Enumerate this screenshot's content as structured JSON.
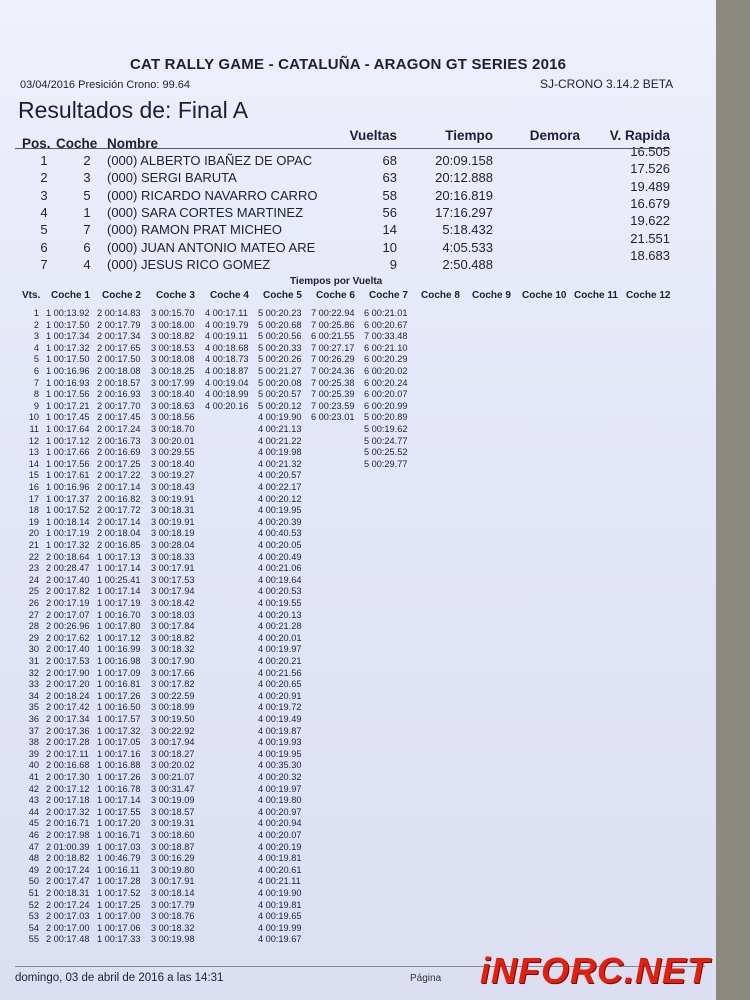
{
  "header": {
    "title": "CAT RALLY GAME - CATALUÑA  - ARAGON GT SERIES 2016",
    "date_line": "03/04/2016 Presición Crono: 99.64",
    "version": "SJ-CRONO 3.14.2 BETA",
    "heading": "Resultados de: Final A"
  },
  "results": {
    "columns": [
      "Pos.",
      "Coche",
      "Nombre",
      "Vueltas",
      "Tiempo",
      "Demora",
      "V. Rapida"
    ],
    "rows": [
      [
        "1",
        "2",
        "(000) ALBERTO IBAÑEZ DE OPAC",
        "68",
        "20:09.158",
        "",
        "16.505"
      ],
      [
        "2",
        "3",
        "(000) SERGI BARUTA",
        "63",
        "20:12.888",
        "",
        "17.526"
      ],
      [
        "3",
        "5",
        "(000) RICARDO NAVARRO CARRO",
        "58",
        "20:16.819",
        "",
        "19.489"
      ],
      [
        "4",
        "1",
        "(000) SARA CORTES MARTINEZ",
        "56",
        "17:16.297",
        "",
        "16.679"
      ],
      [
        "5",
        "7",
        "(000) RAMON PRAT MICHEO",
        "14",
        "5:18.432",
        "",
        "19.622"
      ],
      [
        "6",
        "6",
        "(000) JUAN ANTONIO MATEO ARE",
        "10",
        "4:05.533",
        "",
        "21.551"
      ],
      [
        "7",
        "4",
        "(000) JESUS RICO GOMEZ",
        "9",
        "2:50.488",
        "",
        "18.683"
      ]
    ]
  },
  "laps": {
    "title": "Tiempos por Vuelta",
    "columns": [
      "Vts.",
      "Coche 1",
      "Coche 2",
      "Coche 3",
      "Coche 4",
      "Coche 5",
      "Coche 6",
      "Coche 7",
      "Coche 8",
      "Coche 9",
      "Coche 10",
      "Coche 11",
      "Coche 12"
    ],
    "rows": [
      [
        "1",
        "1 00:13.92",
        "2 00:14.83",
        "3 00:15.70",
        "4 00:17.11",
        "5 00:20.23",
        "7 00:22.94",
        "6 00:21.01"
      ],
      [
        "2",
        "1 00:17.50",
        "2 00:17.79",
        "3 00:18.00",
        "4 00:19.79",
        "5 00:20.68",
        "7 00:25.86",
        "6 00:20.67"
      ],
      [
        "3",
        "1 00:17.34",
        "2 00:17.34",
        "3 00:18.82",
        "4 00:19.11",
        "5 00:20.56",
        "6 00:21.55",
        "7 00:33.48"
      ],
      [
        "4",
        "1 00:17.32",
        "2 00:17.65",
        "3 00:18.53",
        "4 00:18.68",
        "5 00:20.33",
        "7 00:27.17",
        "6 00:21.10"
      ],
      [
        "5",
        "1 00:17.50",
        "2 00:17.50",
        "3 00:18.08",
        "4 00:18.73",
        "5 00:20.26",
        "7 00:26.29",
        "6 00:20.29"
      ],
      [
        "6",
        "1 00:16.96",
        "2 00:18.08",
        "3 00:18.25",
        "4 00:18.87",
        "5 00:21.27",
        "7 00:24.36",
        "6 00:20.02"
      ],
      [
        "7",
        "1 00:16.93",
        "2 00:18.57",
        "3 00:17.99",
        "4 00:19.04",
        "5 00:20.08",
        "7 00:25.38",
        "6 00:20.24"
      ],
      [
        "8",
        "1 00:17.56",
        "2 00:16.93",
        "3 00:18.40",
        "4 00:18.99",
        "5 00:20.57",
        "7 00:25.39",
        "6 00:20.07"
      ],
      [
        "9",
        "1 00:17.21",
        "2 00:17.70",
        "3 00:18.63",
        "4 00:20.16",
        "5 00:20.12",
        "7 00:23.59",
        "6 00:20.99"
      ],
      [
        "10",
        "1 00:17.45",
        "2 00:17.45",
        "3 00:18.56",
        "",
        "4 00:19.90",
        "6 00:23.01",
        "5 00:20.89"
      ],
      [
        "11",
        "1 00:17.64",
        "2 00:17.24",
        "3 00:18.70",
        "",
        "4 00:21.13",
        "",
        "5 00:19.62"
      ],
      [
        "12",
        "1 00:17.12",
        "2 00:16.73",
        "3 00:20.01",
        "",
        "4 00:21.22",
        "",
        "5 00:24.77"
      ],
      [
        "13",
        "1 00:17.66",
        "2 00:16.69",
        "3 00:29.55",
        "",
        "4 00:19.98",
        "",
        "5 00:25.52"
      ],
      [
        "14",
        "1 00:17.56",
        "2 00:17.25",
        "3 00:18.40",
        "",
        "4 00:21.32",
        "",
        "5 00:29.77"
      ],
      [
        "15",
        "1 00:17.61",
        "2 00:17.22",
        "3 00:19.27",
        "",
        "4 00:20.57"
      ],
      [
        "16",
        "1 00:16.96",
        "2 00:17.14",
        "3 00:18.43",
        "",
        "4 00:22.17"
      ],
      [
        "17",
        "1 00:17.37",
        "2 00:16.82",
        "3 00:19.91",
        "",
        "4 00:20.12"
      ],
      [
        "18",
        "1 00:17.52",
        "2 00:17.72",
        "3 00:18.31",
        "",
        "4 00:19.95"
      ],
      [
        "19",
        "1 00:18.14",
        "2 00:17.14",
        "3 00:19.91",
        "",
        "4 00:20.39"
      ],
      [
        "20",
        "1 00:17.19",
        "2 00:18.04",
        "3 00:18.19",
        "",
        "4 00:40.53"
      ],
      [
        "21",
        "1 00:17.32",
        "2 00:16.85",
        "3 00:28.04",
        "",
        "4 00:20.05"
      ],
      [
        "22",
        "2 00:18.64",
        "1 00:17.13",
        "3 00:18.33",
        "",
        "4 00:20.49"
      ],
      [
        "23",
        "2 00:28.47",
        "1 00:17.14",
        "3 00:17.91",
        "",
        "4 00:21.06"
      ],
      [
        "24",
        "2 00:17.40",
        "1 00:25.41",
        "3 00:17.53",
        "",
        "4 00:19.64"
      ],
      [
        "25",
        "2 00:17.82",
        "1 00:17.14",
        "3 00:17.94",
        "",
        "4 00:20.53"
      ],
      [
        "26",
        "2 00:17.19",
        "1 00:17.19",
        "3 00:18.42",
        "",
        "4 00:19.55"
      ],
      [
        "27",
        "2 00:17.07",
        "1 00:16.70",
        "3 00:18.03",
        "",
        "4 00:20.13"
      ],
      [
        "28",
        "2 00:26.96",
        "1 00:17.80",
        "3 00:17.84",
        "",
        "4 00:21.28"
      ],
      [
        "29",
        "2 00:17.62",
        "1 00:17.12",
        "3 00:18.82",
        "",
        "4 00:20.01"
      ],
      [
        "30",
        "2 00:17.40",
        "1 00:16.99",
        "3 00:18.32",
        "",
        "4 00:19.97"
      ],
      [
        "31",
        "2 00:17.53",
        "1 00:16.98",
        "3 00:17.90",
        "",
        "4 00:20.21"
      ],
      [
        "32",
        "2 00:17.90",
        "1 00:17.09",
        "3 00:17.66",
        "",
        "4 00:21.56"
      ],
      [
        "33",
        "2 00:17.20",
        "1 00:16.81",
        "3 00:17.82",
        "",
        "4 00:20.65"
      ],
      [
        "34",
        "2 00:18.24",
        "1 00:17.26",
        "3 00:22.59",
        "",
        "4 00:20.91"
      ],
      [
        "35",
        "2 00:17.42",
        "1 00:16.50",
        "3 00:18.99",
        "",
        "4 00:19.72"
      ],
      [
        "36",
        "2 00:17.34",
        "1 00:17.57",
        "3 00:19.50",
        "",
        "4 00:19.49"
      ],
      [
        "37",
        "2 00:17.36",
        "1 00:17.32",
        "3 00:22.92",
        "",
        "4 00:19.87"
      ],
      [
        "38",
        "2 00:17.28",
        "1 00:17.05",
        "3 00:17.94",
        "",
        "4 00:19.93"
      ],
      [
        "39",
        "2 00:17.11",
        "1 00:17.16",
        "3 00:18.27",
        "",
        "4 00:19.95"
      ],
      [
        "40",
        "2 00:16.68",
        "1 00:16.88",
        "3 00:20.02",
        "",
        "4 00:35.30"
      ],
      [
        "41",
        "2 00:17.30",
        "1 00:17.26",
        "3 00:21.07",
        "",
        "4 00:20.32"
      ],
      [
        "42",
        "2 00:17.12",
        "1 00:16.78",
        "3 00:31.47",
        "",
        "4 00:19.97"
      ],
      [
        "43",
        "2 00:17.18",
        "1 00:17.14",
        "3 00:19.09",
        "",
        "4 00:19.80"
      ],
      [
        "44",
        "2 00:17.32",
        "1 00:17.55",
        "3 00:18.57",
        "",
        "4 00:20.97"
      ],
      [
        "45",
        "2 00:16.71",
        "1 00:17.20",
        "3 00:19.31",
        "",
        "4 00:20.94"
      ],
      [
        "46",
        "2 00:17.98",
        "1 00:16.71",
        "3 00:18.60",
        "",
        "4 00:20.07"
      ],
      [
        "47",
        "2 01:00.39",
        "1 00:17.03",
        "3 00:18.87",
        "",
        "4 00:20.19"
      ],
      [
        "48",
        "2 00:18.82",
        "1 00:46.79",
        "3 00:16.29",
        "",
        "4 00:19.81"
      ],
      [
        "49",
        "2 00:17.24",
        "1 00:16.11",
        "3 00:19.80",
        "",
        "4 00:20.61"
      ],
      [
        "50",
        "2 00:17.47",
        "1 00:17.28",
        "3 00:17.91",
        "",
        "4 00:21.11"
      ],
      [
        "51",
        "2 00:18.31",
        "1 00:17.52",
        "3 00:18.14",
        "",
        "4 00:19.90"
      ],
      [
        "52",
        "2 00:17.24",
        "1 00:17.25",
        "3 00:17.79",
        "",
        "4 00:19.81"
      ],
      [
        "53",
        "2 00:17.03",
        "1 00:17.00",
        "3 00:18.76",
        "",
        "4 00:19.65"
      ],
      [
        "54",
        "2 00:17.00",
        "1 00:17.06",
        "3 00:18.32",
        "",
        "4 00:19.99"
      ],
      [
        "55",
        "2 00:17.48",
        "1 00:17.33",
        "3 00:19.98",
        "",
        "4 00:19.67"
      ]
    ]
  },
  "footer": {
    "printed": "domingo, 03 de abril de 2016 a las 14:31",
    "page_label": "Página"
  },
  "watermark": {
    "text": "INFORC.NET",
    "color": "#e02010"
  }
}
